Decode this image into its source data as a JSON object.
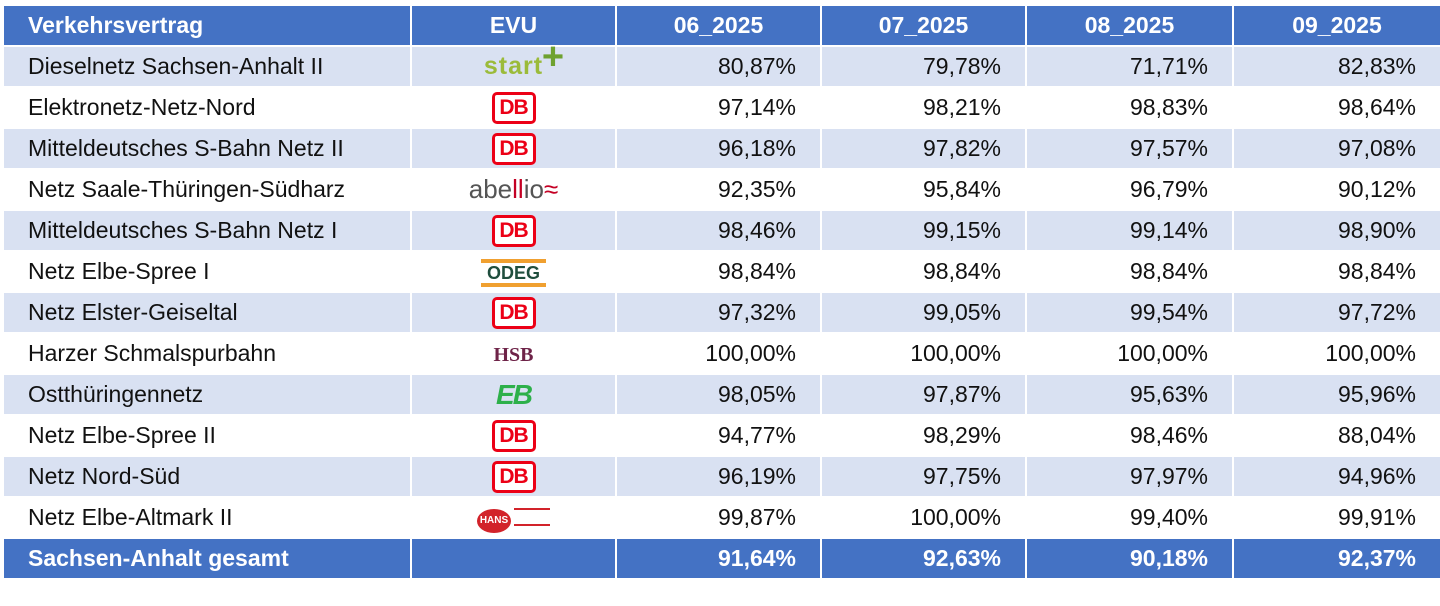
{
  "header": {
    "contract": "Verkehrsvertrag",
    "evu": "EVU",
    "months": [
      "06_2025",
      "07_2025",
      "08_2025",
      "09_2025"
    ]
  },
  "colors": {
    "header_bg": "#4472C4",
    "stripe": "#D9E1F2",
    "db_red": "#EC0016"
  },
  "rows": [
    {
      "name": "Dieselnetz Sachsen-Anhalt II",
      "logo": "start",
      "logo_text": "start",
      "values": [
        "80,87%",
        "79,78%",
        "71,71%",
        "82,83%"
      ]
    },
    {
      "name": "Elektronetz-Netz-Nord",
      "logo": "db",
      "logo_text": "DB",
      "values": [
        "97,14%",
        "98,21%",
        "98,83%",
        "98,64%"
      ]
    },
    {
      "name": "Mitteldeutsches S-Bahn Netz II",
      "logo": "db",
      "logo_text": "DB",
      "values": [
        "96,18%",
        "97,82%",
        "97,57%",
        "97,08%"
      ]
    },
    {
      "name": "Netz Saale-Thüringen-Südharz",
      "logo": "abellio",
      "logo_text": "abellio",
      "values": [
        "92,35%",
        "95,84%",
        "96,79%",
        "90,12%"
      ]
    },
    {
      "name": "Mitteldeutsches S-Bahn Netz I",
      "logo": "db",
      "logo_text": "DB",
      "values": [
        "98,46%",
        "99,15%",
        "99,14%",
        "98,90%"
      ]
    },
    {
      "name": "Netz Elbe-Spree I",
      "logo": "odeg",
      "logo_text": "ODEG",
      "values": [
        "98,84%",
        "98,84%",
        "98,84%",
        "98,84%"
      ]
    },
    {
      "name": "Netz Elster-Geiseltal",
      "logo": "db",
      "logo_text": "DB",
      "values": [
        "97,32%",
        "99,05%",
        "99,54%",
        "97,72%"
      ]
    },
    {
      "name": "Harzer Schmalspurbahn",
      "logo": "hsb",
      "logo_text": "HSB",
      "values": [
        "100,00%",
        "100,00%",
        "100,00%",
        "100,00%"
      ]
    },
    {
      "name": "Ostthüringennetz",
      "logo": "eb",
      "logo_text": "EB",
      "values": [
        "98,05%",
        "97,87%",
        "95,63%",
        "95,96%"
      ]
    },
    {
      "name": "Netz Elbe-Spree II",
      "logo": "db",
      "logo_text": "DB",
      "values": [
        "94,77%",
        "98,29%",
        "98,46%",
        "88,04%"
      ]
    },
    {
      "name": "Netz Nord-Süd",
      "logo": "db",
      "logo_text": "DB",
      "values": [
        "96,19%",
        "97,75%",
        "97,97%",
        "94,96%"
      ]
    },
    {
      "name": "Netz Elbe-Altmark II",
      "logo": "hans",
      "logo_text": "HANS",
      "values": [
        "99,87%",
        "100,00%",
        "99,40%",
        "99,91%"
      ]
    }
  ],
  "total": {
    "name": "Sachsen-Anhalt gesamt",
    "values": [
      "91,64%",
      "92,63%",
      "90,18%",
      "92,37%"
    ]
  }
}
